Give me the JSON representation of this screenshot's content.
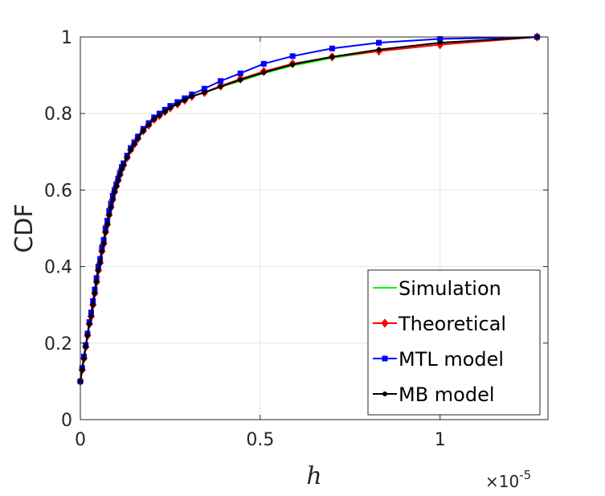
{
  "chart_data": {
    "type": "line",
    "title": "",
    "xlabel": "h",
    "ylabel": "CDF",
    "x_exponent_label": "×10",
    "x_exponent_power": "-5",
    "xlim": [
      0,
      1.3
    ],
    "ylim": [
      0,
      1
    ],
    "xticks": [
      0,
      0.5,
      1
    ],
    "xtick_labels": [
      "0",
      "0.5",
      "1"
    ],
    "yticks": [
      0,
      0.2,
      0.4,
      0.6,
      0.8,
      1
    ],
    "ytick_labels": [
      "0",
      "0.2",
      "0.4",
      "0.6",
      "0.8",
      "1"
    ],
    "grid": true,
    "legend_position": "bottom-right",
    "x": [
      0.0,
      0.005,
      0.01,
      0.015,
      0.02,
      0.025,
      0.03,
      0.035,
      0.04,
      0.045,
      0.05,
      0.055,
      0.06,
      0.065,
      0.07,
      0.075,
      0.08,
      0.085,
      0.09,
      0.095,
      0.1,
      0.105,
      0.11,
      0.115,
      0.12,
      0.13,
      0.14,
      0.15,
      0.16,
      0.175,
      0.19,
      0.205,
      0.22,
      0.235,
      0.25,
      0.27,
      0.29,
      0.31,
      0.345,
      0.39,
      0.445,
      0.51,
      0.59,
      0.7,
      0.83,
      1.0,
      1.27
    ],
    "series": [
      {
        "name": "Simulation",
        "color": "#00ff00",
        "marker": "none",
        "values": [
          0.1,
          0.13,
          0.16,
          0.19,
          0.22,
          0.25,
          0.27,
          0.3,
          0.33,
          0.36,
          0.39,
          0.41,
          0.44,
          0.46,
          0.49,
          0.51,
          0.535,
          0.555,
          0.575,
          0.595,
          0.61,
          0.625,
          0.64,
          0.655,
          0.665,
          0.685,
          0.705,
          0.72,
          0.735,
          0.755,
          0.77,
          0.785,
          0.795,
          0.805,
          0.815,
          0.825,
          0.835,
          0.845,
          0.855,
          0.87,
          0.885,
          0.905,
          0.925,
          0.945,
          0.963,
          0.98,
          1.0
        ]
      },
      {
        "name": "Theoretical",
        "color": "#ff0000",
        "marker": "diamond",
        "values": [
          0.1,
          0.13,
          0.16,
          0.19,
          0.22,
          0.25,
          0.27,
          0.3,
          0.33,
          0.36,
          0.39,
          0.41,
          0.44,
          0.46,
          0.49,
          0.51,
          0.535,
          0.555,
          0.575,
          0.595,
          0.61,
          0.625,
          0.64,
          0.655,
          0.665,
          0.685,
          0.705,
          0.72,
          0.735,
          0.755,
          0.77,
          0.785,
          0.795,
          0.805,
          0.815,
          0.825,
          0.835,
          0.845,
          0.855,
          0.872,
          0.89,
          0.91,
          0.93,
          0.948,
          0.963,
          0.98,
          1.0
        ]
      },
      {
        "name": "MTL model",
        "color": "#0000ff",
        "marker": "square",
        "values": [
          0.1,
          0.135,
          0.165,
          0.195,
          0.225,
          0.255,
          0.28,
          0.31,
          0.34,
          0.37,
          0.4,
          0.42,
          0.45,
          0.47,
          0.5,
          0.52,
          0.545,
          0.565,
          0.585,
          0.6,
          0.615,
          0.63,
          0.645,
          0.66,
          0.67,
          0.69,
          0.71,
          0.725,
          0.74,
          0.76,
          0.775,
          0.79,
          0.8,
          0.81,
          0.82,
          0.83,
          0.84,
          0.85,
          0.865,
          0.885,
          0.905,
          0.93,
          0.95,
          0.97,
          0.985,
          0.995,
          1.0
        ]
      },
      {
        "name": "MB model",
        "color": "#000000",
        "marker": "dot",
        "values": [
          0.1,
          0.13,
          0.16,
          0.19,
          0.22,
          0.25,
          0.27,
          0.3,
          0.33,
          0.36,
          0.39,
          0.41,
          0.44,
          0.46,
          0.49,
          0.51,
          0.535,
          0.555,
          0.575,
          0.595,
          0.61,
          0.625,
          0.64,
          0.655,
          0.665,
          0.685,
          0.705,
          0.72,
          0.735,
          0.755,
          0.77,
          0.785,
          0.795,
          0.805,
          0.815,
          0.825,
          0.835,
          0.845,
          0.855,
          0.87,
          0.888,
          0.907,
          0.928,
          0.948,
          0.967,
          0.985,
          1.0
        ]
      }
    ]
  }
}
